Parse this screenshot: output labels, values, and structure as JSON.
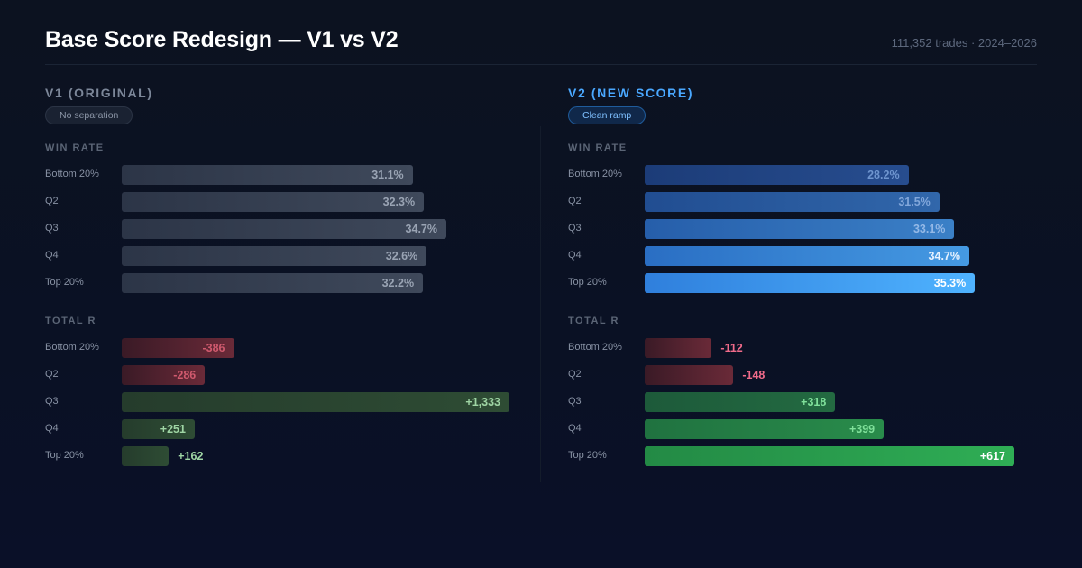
{
  "header": {
    "title": "Base Score Redesign — V1 vs V2",
    "meta": "111,352 trades · 2024–2026"
  },
  "colors": {
    "v1_bar": "#3b4557",
    "v1_text": "#9aa4b4",
    "v2_blue_light": "#4fb3ff",
    "v2_blue_dark": "#1c3c78",
    "neg_bar": "#5c2431",
    "neg_text_v1": "#d05a6e",
    "neg_text_v2": "#f06b8a",
    "pos_v1": "#2a4632",
    "pos_text_v1": "#9fd5a4",
    "pos_v2_dark": "#1d5a3a",
    "pos_v2_light": "#2fae55"
  },
  "chart_data": [
    {
      "type": "bar",
      "panel": "v1",
      "title": "V1 (ORIGINAL)",
      "badge": "No separation",
      "charts": {
        "win_rate": {
          "label": "WIN RATE",
          "categories": [
            "Bottom 20%",
            "Q2",
            "Q3",
            "Q4",
            "Top 20%"
          ],
          "values": [
            31.1,
            32.3,
            34.7,
            32.6,
            32.2
          ],
          "display": [
            "31.1%",
            "32.3%",
            "34.7%",
            "32.6%",
            "32.2%"
          ]
        },
        "total_r": {
          "label": "TOTAL R",
          "categories": [
            "Bottom 20%",
            "Q2",
            "Q3",
            "Q4",
            "Top 20%"
          ],
          "values": [
            -386,
            -286,
            1333,
            251,
            162
          ],
          "display": [
            "-386",
            "-286",
            "+1,333",
            "+251",
            "+162"
          ]
        }
      }
    },
    {
      "type": "bar",
      "panel": "v2",
      "title": "V2 (NEW SCORE)",
      "badge": "Clean ramp",
      "charts": {
        "win_rate": {
          "label": "WIN RATE",
          "categories": [
            "Bottom 20%",
            "Q2",
            "Q3",
            "Q4",
            "Top 20%"
          ],
          "values": [
            28.2,
            31.5,
            33.1,
            34.7,
            35.3
          ],
          "display": [
            "28.2%",
            "31.5%",
            "33.1%",
            "34.7%",
            "35.3%"
          ]
        },
        "total_r": {
          "label": "TOTAL R",
          "categories": [
            "Bottom 20%",
            "Q2",
            "Q3",
            "Q4",
            "Top 20%"
          ],
          "values": [
            -112,
            -148,
            318,
            399,
            617
          ],
          "display": [
            "-112",
            "-148",
            "+318",
            "+399",
            "+617"
          ]
        }
      }
    }
  ]
}
